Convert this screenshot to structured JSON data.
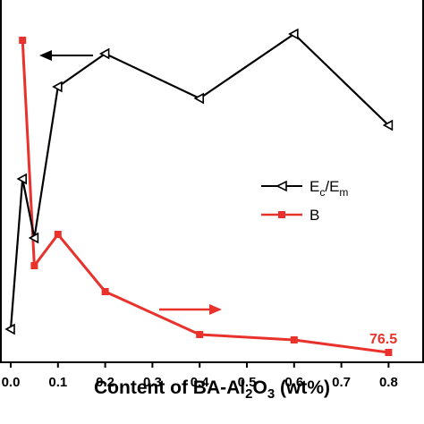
{
  "chart_data": {
    "type": "line",
    "xlabel": "Content of BA-Al2O3 (wt%)",
    "xlabel_parts": {
      "pre": "Content of BA-Al",
      "sub1": "2",
      "mid": "O",
      "sub2": "3",
      "post": " (wt%)"
    },
    "x_ticks": [
      "0.0",
      "0.1",
      "0.2",
      "0.3",
      "0.4",
      "0.5",
      "0.6",
      "0.7",
      "0.8"
    ],
    "xlim": [
      -0.01,
      0.87
    ],
    "series": [
      {
        "name": "Ec/Em",
        "name_parts": {
          "a": "E",
          "a_sub": "c",
          "slash": "/E",
          "b_sub": "m"
        },
        "color": "#000000",
        "marker": "triangle-left",
        "axis": "left",
        "x": [
          0,
          0.025,
          0.05,
          0.1,
          0.2,
          0.4,
          0.6,
          0.8
        ],
        "y": [
          368,
          200,
          266,
          97,
          60,
          110,
          38,
          140
        ]
      },
      {
        "name": "B",
        "color": "#e8322b",
        "marker": "square",
        "axis": "right",
        "x": [
          0.025,
          0.05,
          0.1,
          0.2,
          0.4,
          0.6,
          0.8
        ],
        "y": [
          45,
          297,
          262,
          326,
          374,
          380,
          394
        ]
      }
    ],
    "annotations": [
      {
        "text": "76.5",
        "series": "B",
        "color": "#e8322b"
      }
    ],
    "arrows": [
      {
        "direction": "left",
        "color": "#000000",
        "target": "left-axis"
      },
      {
        "direction": "right",
        "color": "#e8322b",
        "target": "right-axis"
      }
    ],
    "legend_position": "center-right",
    "grid": false
  }
}
